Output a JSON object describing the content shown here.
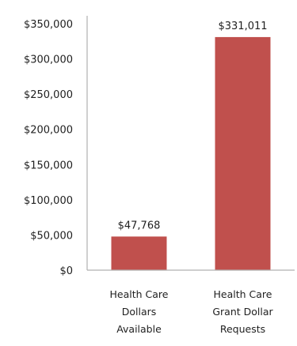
{
  "chart_data": {
    "type": "bar",
    "title": "",
    "xlabel": "",
    "ylabel": "",
    "categories": [
      [
        "Health Care",
        "Dollars",
        "Available"
      ],
      [
        "Health Care",
        "Grant Dollar",
        "Requests"
      ]
    ],
    "values": [
      47768,
      331011
    ],
    "data_labels": [
      "$47,768",
      "$331,011"
    ],
    "ylim": [
      0,
      350000
    ],
    "y_ticks": [
      0,
      50000,
      100000,
      150000,
      200000,
      250000,
      300000,
      350000
    ],
    "y_tick_labels": [
      "$0",
      "$50,000",
      "$100,000",
      "$150,000",
      "$200,000",
      "$250,000",
      "$300,000",
      "$350,000"
    ],
    "grid": false,
    "legend": "none",
    "colors": {
      "bar": "#c0504d",
      "axis": "#b0b0b0",
      "text": "#1f1f1f"
    }
  }
}
